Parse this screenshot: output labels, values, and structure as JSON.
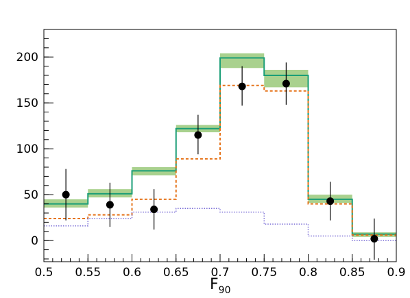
{
  "chart_data": {
    "type": "histogram",
    "title": "",
    "xlabel": "F",
    "xlabel_subscript": "90",
    "ylabel": "",
    "xlim": [
      0.5,
      0.9
    ],
    "ylim": [
      -23,
      230
    ],
    "grid": false,
    "legend": "none",
    "bin_edges": [
      0.5,
      0.55,
      0.6,
      0.65,
      0.7,
      0.75,
      0.8,
      0.85,
      0.9
    ],
    "x_ticks": [
      {
        "value": 0.5,
        "label": "0.5"
      },
      {
        "value": 0.55,
        "label": "0.55"
      },
      {
        "value": 0.6,
        "label": "0.6"
      },
      {
        "value": 0.65,
        "label": "0.65"
      },
      {
        "value": 0.7,
        "label": "0.7"
      },
      {
        "value": 0.75,
        "label": "0.75"
      },
      {
        "value": 0.8,
        "label": "0.8"
      },
      {
        "value": 0.85,
        "label": "0.85"
      },
      {
        "value": 0.9,
        "label": "0.9"
      }
    ],
    "y_ticks": [
      {
        "value": 0,
        "label": "0"
      },
      {
        "value": 50,
        "label": "50"
      },
      {
        "value": 100,
        "label": "100"
      },
      {
        "value": 150,
        "label": "150"
      },
      {
        "value": 200,
        "label": "200"
      }
    ],
    "series": [
      {
        "kind": "band",
        "color": "#a9d18e",
        "low": [
          36,
          47,
          71,
          118,
          188,
          167,
          41,
          4
        ],
        "high": [
          45,
          56,
          80,
          126,
          204,
          186,
          50,
          9
        ]
      },
      {
        "kind": "step",
        "style": "solid",
        "color": "#1a9e77",
        "values": [
          40,
          51,
          76,
          122,
          199,
          180,
          45,
          7
        ]
      },
      {
        "kind": "step",
        "style": "dashed",
        "color": "#e5731a",
        "values": [
          24,
          28,
          45,
          89,
          169,
          163,
          40,
          6
        ]
      },
      {
        "kind": "step",
        "style": "dotted",
        "color": "#7b6fd6",
        "values": [
          16,
          24,
          31,
          35,
          31,
          18,
          5,
          0
        ]
      },
      {
        "kind": "points",
        "color": "#000000",
        "x": [
          0.525,
          0.575,
          0.625,
          0.675,
          0.725,
          0.775,
          0.825,
          0.875
        ],
        "y": [
          50,
          39,
          34,
          115,
          168,
          171,
          43,
          2
        ],
        "err_low": [
          28,
          24,
          22,
          21,
          21,
          23,
          21,
          23
        ],
        "err_high": [
          28,
          24,
          22,
          22,
          22,
          23,
          21,
          22
        ]
      }
    ]
  }
}
